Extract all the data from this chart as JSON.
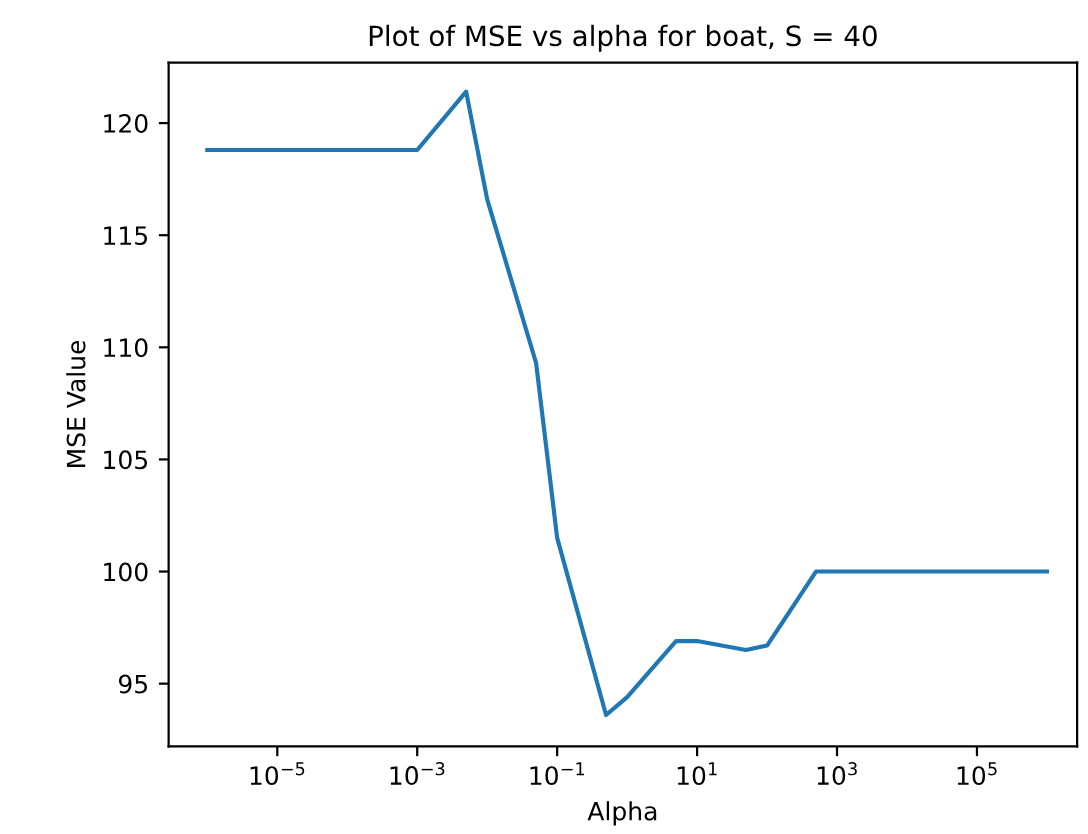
{
  "chart_data": {
    "type": "line",
    "title": "Plot of MSE vs alpha for boat, S = 40",
    "xlabel": "Alpha",
    "ylabel": "MSE Value",
    "log": "x",
    "x": [
      1e-06,
      1e-05,
      0.0001,
      0.001,
      0.005,
      0.01,
      0.05,
      0.1,
      0.5,
      1,
      5,
      10,
      50,
      100,
      500,
      1000,
      10000,
      100000,
      1000000
    ],
    "series": [
      {
        "color": "#1f77b4",
        "values": [
          118.8,
          118.8,
          118.8,
          118.8,
          121.4,
          116.6,
          109.3,
          101.5,
          93.6,
          94.4,
          96.9,
          96.9,
          96.5,
          96.7,
          100.0,
          100.0,
          100.0,
          100.0,
          100.0
        ]
      }
    ],
    "xlim": [
      2.8e-07,
      2700000.0
    ],
    "ylim": [
      92.2,
      122.7
    ],
    "xticks": [
      {
        "value": 1e-05,
        "label": "10$^{−5}$"
      },
      {
        "value": 0.001,
        "label": "10$^{−3}$"
      },
      {
        "value": 0.1,
        "label": "10$^{−1}$"
      },
      {
        "value": 10,
        "label": "10$^{1}$"
      },
      {
        "value": 1000,
        "label": "10$^{3}$"
      },
      {
        "value": 100000,
        "label": "10$^{5}$"
      }
    ],
    "yticks": [
      95,
      100,
      105,
      110,
      115,
      120
    ],
    "grid": false,
    "legend": false,
    "marker": "none",
    "line_style": "solid"
  }
}
